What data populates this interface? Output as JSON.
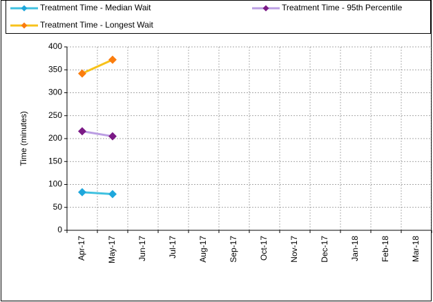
{
  "chart_data": {
    "type": "line",
    "y_axis_label": "Time (minutes)",
    "categories": [
      "Apr-17",
      "May-17",
      "Jun-17",
      "Jul-17",
      "Aug-17",
      "Sep-17",
      "Oct-17",
      "Nov-17",
      "Dec-17",
      "Jan-18",
      "Feb-18",
      "Mar-18"
    ],
    "series": [
      {
        "name": "Treatment Time - Median Wait",
        "color": "#3fc1e0",
        "marker_color": "#1ea7dc",
        "values": [
          83,
          79,
          null,
          null,
          null,
          null,
          null,
          null,
          null,
          null,
          null,
          null
        ]
      },
      {
        "name": "Treatment Time - 95th Percentile",
        "color": "#bb9ee3",
        "marker_color": "#7b1a86",
        "values": [
          216,
          205,
          null,
          null,
          null,
          null,
          null,
          null,
          null,
          null,
          null,
          null
        ]
      },
      {
        "name": "Treatment Time - Longest Wait",
        "color": "#f7c21b",
        "marker_color": "#fb7d0e",
        "values": [
          342,
          372,
          null,
          null,
          null,
          null,
          null,
          null,
          null,
          null,
          null,
          null
        ]
      }
    ],
    "ylim": [
      0,
      400
    ],
    "yticks": [
      0,
      50,
      100,
      150,
      200,
      250,
      300,
      350,
      400
    ],
    "grid": true
  }
}
